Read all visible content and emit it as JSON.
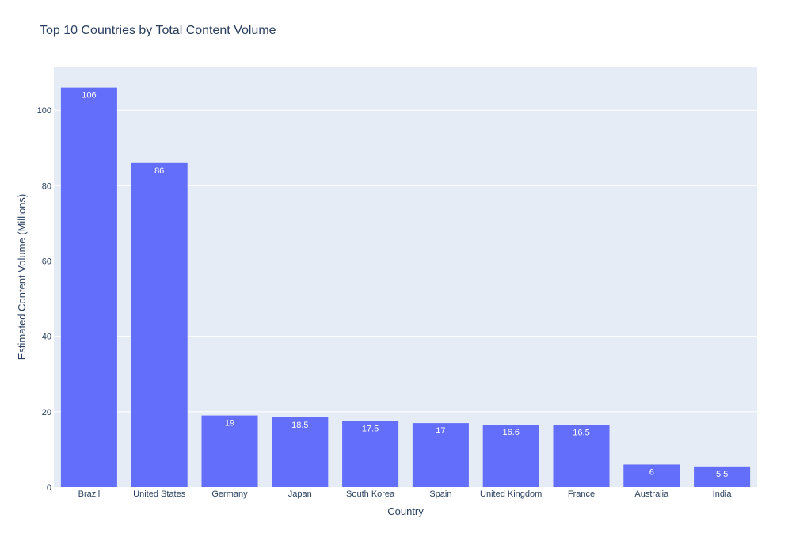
{
  "chart_data": {
    "type": "bar",
    "title": "Top 10 Countries by Total Content Volume",
    "xlabel": "Country",
    "ylabel": "Estimated Content Volume (Millions)",
    "categories": [
      "Brazil",
      "United States",
      "Germany",
      "Japan",
      "South Korea",
      "Spain",
      "United Kingdom",
      "France",
      "Australia",
      "India"
    ],
    "values": [
      106,
      86,
      19,
      18.5,
      17.5,
      17,
      16.6,
      16.5,
      6,
      5.5
    ],
    "value_labels": [
      "106",
      "86",
      "19",
      "18.5",
      "17.5",
      "17",
      "16.6",
      "16.5",
      "6",
      "5.5"
    ],
    "ylim": [
      0,
      111.6
    ],
    "yticks": [
      0,
      20,
      40,
      60,
      80,
      100
    ],
    "ytick_labels": [
      "0",
      "20",
      "40",
      "60",
      "80",
      "100"
    ],
    "grid": true,
    "legend": "none",
    "colors": {
      "bar": "#636efa",
      "plot_background": "#e5ecf6",
      "grid": "#ffffff",
      "text": "#2a3f5f"
    }
  }
}
